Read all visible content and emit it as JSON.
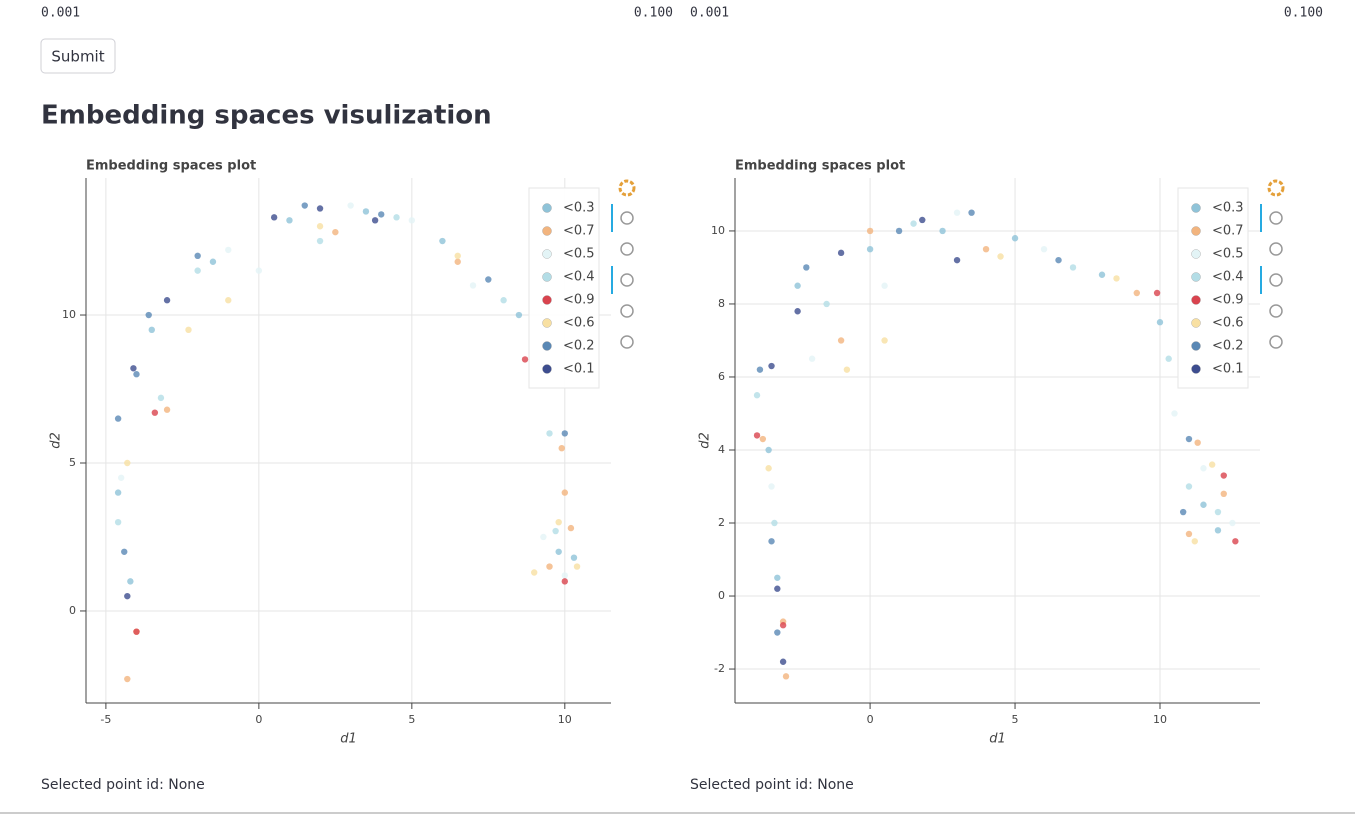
{
  "sliders": [
    {
      "min": "0.001",
      "max": "0.100"
    },
    {
      "min": "0.001",
      "max": "0.100"
    }
  ],
  "submit": "Submit",
  "heading": "Embedding spaces visulization",
  "chart_data": [
    {
      "type": "scatter",
      "title": "Embedding spaces plot",
      "x_label": "d1",
      "y_label": "d2",
      "xlim": [
        -5.65,
        11.51
      ],
      "ylim": [
        -3.11,
        14.63
      ],
      "xticks": [
        -5,
        0,
        5,
        10
      ],
      "yticks": [
        0,
        5,
        10
      ],
      "grid": true,
      "legend": "top-right",
      "series": [
        {
          "name": "<0.3",
          "color": "#8fc3d8",
          "x": [
            -4.2,
            -4.6,
            -3.5,
            -1.5,
            1,
            3.5,
            6,
            8.5,
            9.8,
            10.3
          ],
          "values": [
            1,
            4,
            9.5,
            11.8,
            13.2,
            13.5,
            12.5,
            10,
            2,
            1.8
          ]
        },
        {
          "name": "<0.7",
          "color": "#f2b47e",
          "x": [
            -4.3,
            -4,
            -3,
            2.5,
            6.5,
            9.9,
            10,
            9.5,
            10.2
          ],
          "values": [
            -2.3,
            -0.7,
            6.8,
            12.8,
            11.8,
            5.5,
            4,
            1.5,
            2.8
          ]
        },
        {
          "name": "<0.5",
          "color": "#e3f4f6",
          "x": [
            -4.5,
            -1,
            0,
            3,
            5,
            7,
            9.3,
            10
          ],
          "values": [
            4.5,
            12.2,
            11.5,
            13.7,
            13.2,
            11,
            2.5,
            1.2
          ]
        },
        {
          "name": "<0.4",
          "color": "#b3dde6",
          "x": [
            -4.6,
            -3.2,
            -2,
            2,
            4.5,
            8,
            9.5,
            9.7
          ],
          "values": [
            3,
            7.2,
            11.5,
            12.5,
            13.3,
            10.5,
            6,
            2.7
          ]
        },
        {
          "name": "<0.9",
          "color": "#d9434e",
          "x": [
            -4,
            -3.4,
            8.7,
            10
          ],
          "values": [
            -0.7,
            6.7,
            8.5,
            1
          ]
        },
        {
          "name": "<0.6",
          "color": "#f8e0a2",
          "x": [
            -4.3,
            -2.3,
            -1,
            2,
            6.5,
            9.8,
            10.4,
            9
          ],
          "values": [
            5,
            9.5,
            10.5,
            13,
            12,
            3,
            1.5,
            1.3
          ]
        },
        {
          "name": "<0.2",
          "color": "#5a88b5",
          "x": [
            -4.4,
            -4.6,
            -4,
            -3.6,
            -2,
            1.5,
            4,
            7.5,
            10
          ],
          "values": [
            2,
            6.5,
            8,
            10,
            12,
            13.7,
            13.4,
            11.2,
            6
          ]
        },
        {
          "name": "<0.1",
          "color": "#3d4d8f",
          "x": [
            -4.3,
            -4.1,
            -3,
            0.5,
            2,
            3.8
          ],
          "values": [
            0.5,
            8.2,
            10.5,
            13.3,
            13.6,
            13.2
          ]
        }
      ]
    },
    {
      "type": "scatter",
      "title": "Embedding spaces plot",
      "x_label": "d1",
      "y_label": "d2",
      "xlim": [
        -4.66,
        13.45
      ],
      "ylim": [
        -2.93,
        11.45
      ],
      "xticks": [
        0,
        5,
        10
      ],
      "yticks": [
        -2,
        0,
        2,
        4,
        6,
        8,
        10
      ],
      "grid": true,
      "legend": "top-right",
      "series": [
        {
          "name": "<0.3",
          "color": "#8fc3d8",
          "x": [
            -3.2,
            -3.5,
            -2.5,
            0,
            2.5,
            5,
            8,
            10,
            11.5,
            12
          ],
          "values": [
            0.5,
            4,
            8.5,
            9.5,
            10,
            9.8,
            8.8,
            7.5,
            2.5,
            1.8
          ]
        },
        {
          "name": "<0.7",
          "color": "#f2b47e",
          "x": [
            -2.9,
            -3,
            -3.7,
            -1,
            0,
            4,
            9.2,
            11.3,
            11,
            12.2
          ],
          "values": [
            -2.2,
            -0.7,
            4.3,
            7,
            10,
            9.5,
            8.3,
            4.2,
            1.7,
            2.8
          ]
        },
        {
          "name": "<0.5",
          "color": "#e3f4f6",
          "x": [
            -3.4,
            -2,
            0.5,
            3,
            6,
            10.5,
            11.5,
            12.5
          ],
          "values": [
            3,
            6.5,
            8.5,
            10.5,
            9.5,
            5,
            3.5,
            2
          ]
        },
        {
          "name": "<0.4",
          "color": "#b3dde6",
          "x": [
            -3.3,
            -3.9,
            -1.5,
            1.5,
            7,
            10.3,
            11,
            12
          ],
          "values": [
            2,
            5.5,
            8,
            10.2,
            9,
            6.5,
            3,
            2.3
          ]
        },
        {
          "name": "<0.9",
          "color": "#d9434e",
          "x": [
            -3,
            -3.9,
            9.9,
            12.2,
            12.6
          ],
          "values": [
            -0.8,
            4.4,
            8.3,
            3.3,
            1.5
          ]
        },
        {
          "name": "<0.6",
          "color": "#f8e0a2",
          "x": [
            -3.5,
            -0.8,
            0.5,
            4.5,
            8.5,
            11.8,
            11.2
          ],
          "values": [
            3.5,
            6.2,
            7,
            9.3,
            8.7,
            3.6,
            1.5
          ]
        },
        {
          "name": "<0.2",
          "color": "#5a88b5",
          "x": [
            -3.2,
            -3.4,
            -3.8,
            -2.2,
            1,
            3.5,
            6.5,
            11,
            10.8
          ],
          "values": [
            -1,
            1.5,
            6.2,
            9,
            10,
            10.5,
            9.2,
            4.3,
            2.3
          ]
        },
        {
          "name": "<0.1",
          "color": "#3d4d8f",
          "x": [
            -3,
            -3.2,
            -3.4,
            -2.5,
            -1,
            1.8,
            3
          ],
          "values": [
            -1.8,
            0.2,
            6.3,
            7.8,
            9.4,
            10.3,
            9.2
          ]
        }
      ]
    }
  ],
  "footer": [
    "Selected point id: None",
    "Selected point id: None"
  ]
}
